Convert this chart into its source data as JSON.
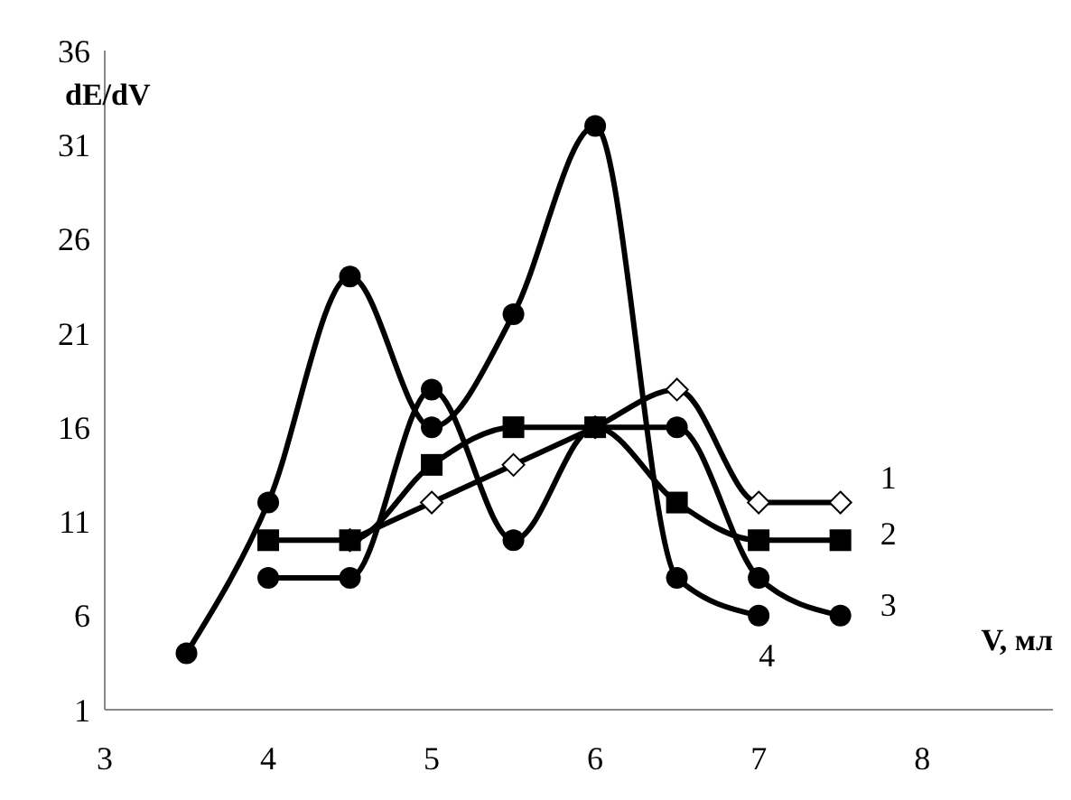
{
  "chart_data": {
    "type": "line",
    "xlabel": "V, мл",
    "ylabel": "dE/dV",
    "xlim": [
      3,
      8.8
    ],
    "xticks": [
      3,
      4,
      5,
      6,
      7,
      8
    ],
    "ylim": [
      1,
      36
    ],
    "yticks": [
      1,
      6,
      11,
      16,
      21,
      26,
      31,
      36
    ],
    "series": [
      {
        "name": "1",
        "color": "#000000",
        "marker": "diamond",
        "x": [
          4.5,
          5,
          5.5,
          6,
          6.5,
          7,
          7.5
        ],
        "values": [
          10,
          12,
          14,
          16,
          18,
          12,
          12
        ]
      },
      {
        "name": "2",
        "color": "#000000",
        "marker": "square",
        "x": [
          4,
          4.5,
          5,
          5.5,
          6,
          6.5,
          7,
          7.5
        ],
        "values": [
          10,
          10,
          14,
          16,
          16,
          12,
          10,
          10
        ]
      },
      {
        "name": "3",
        "color": "#000000",
        "marker": "circle",
        "x": [
          4,
          4.5,
          5,
          5.5,
          6,
          6.5,
          7,
          7.5
        ],
        "values": [
          8,
          8,
          18,
          10,
          16,
          16,
          8,
          6
        ]
      },
      {
        "name": "4",
        "color": "#000000",
        "marker": "circle",
        "x": [
          3.5,
          4,
          4.5,
          5,
          5.5,
          6,
          6.5,
          7
        ],
        "values": [
          4,
          12,
          24,
          16,
          22,
          32,
          8,
          6
        ]
      }
    ]
  }
}
